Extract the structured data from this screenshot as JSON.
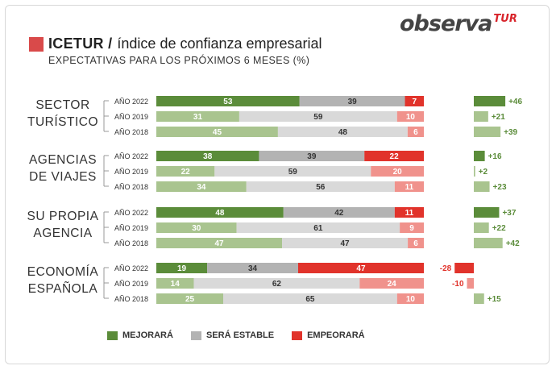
{
  "logo": {
    "brand": "observa",
    "suffix": "TUR"
  },
  "header": {
    "title_bold": "ICETUR /",
    "title_rest": "índice de confianza empresarial",
    "subtitle": "EXPECTATIVAS PARA LOS PRÓXIMOS 6 MESES (%)"
  },
  "colors": {
    "mejorara_2022": "#5b8c3a",
    "mejorara_old": "#a9c48f",
    "estable_2022": "#b3b3b3",
    "estable_old": "#d9d9d9",
    "empeorara_2022": "#e1332b",
    "empeorara_old": "#f0928c",
    "net_pos_2022": "#5b8c3a",
    "net_pos_old": "#a9c48f",
    "net_neg_2022": "#e1332b",
    "net_neg_old": "#f0928c"
  },
  "legend": [
    {
      "label": "MEJORARÁ",
      "color": "#5b8c3a"
    },
    {
      "label": "SERÁ ESTABLE",
      "color": "#b3b3b3"
    },
    {
      "label": "EMPEORARÁ",
      "color": "#e1332b"
    }
  ],
  "chart_data": {
    "type": "bar",
    "stacked": true,
    "orientation": "horizontal",
    "series_names": [
      "MEJORARÁ",
      "SERÁ ESTABLE",
      "EMPEORARÁ"
    ],
    "groups": [
      {
        "label": [
          "SECTOR",
          "TURÍSTICO"
        ],
        "rows": [
          {
            "year": "AÑO 2022",
            "values": [
              53,
              39,
              7
            ],
            "net": "+46",
            "net_value": 46
          },
          {
            "year": "AÑO 2019",
            "values": [
              31,
              59,
              10
            ],
            "net": "+21",
            "net_value": 21
          },
          {
            "year": "AÑO 2018",
            "values": [
              45,
              48,
              6
            ],
            "net": "+39",
            "net_value": 39
          }
        ]
      },
      {
        "label": [
          "AGENCIAS",
          "DE VIAJES"
        ],
        "rows": [
          {
            "year": "AÑO 2022",
            "values": [
              38,
              39,
              22
            ],
            "net": "+16",
            "net_value": 16
          },
          {
            "year": "AÑO 2019",
            "values": [
              22,
              59,
              20
            ],
            "net": "+2",
            "net_value": 2
          },
          {
            "year": "AÑO 2018",
            "values": [
              34,
              56,
              11
            ],
            "net": "+23",
            "net_value": 23
          }
        ]
      },
      {
        "label": [
          "SU PROPIA",
          "AGENCIA"
        ],
        "rows": [
          {
            "year": "AÑO 2022",
            "values": [
              48,
              42,
              11
            ],
            "net": "+37",
            "net_value": 37
          },
          {
            "year": "AÑO 2019",
            "values": [
              30,
              61,
              9
            ],
            "net": "+22",
            "net_value": 22
          },
          {
            "year": "AÑO 2018",
            "values": [
              47,
              47,
              6
            ],
            "net": "+42",
            "net_value": 42
          }
        ]
      },
      {
        "label": [
          "ECONOMÍA",
          "ESPAÑOLA"
        ],
        "rows": [
          {
            "year": "AÑO 2022",
            "values": [
              19,
              34,
              47
            ],
            "net": "-28",
            "net_value": -28
          },
          {
            "year": "AÑO 2019",
            "values": [
              14,
              62,
              24
            ],
            "net": "-10",
            "net_value": -10
          },
          {
            "year": "AÑO 2018",
            "values": [
              25,
              65,
              10
            ],
            "net": "+15",
            "net_value": 15
          }
        ]
      }
    ]
  }
}
